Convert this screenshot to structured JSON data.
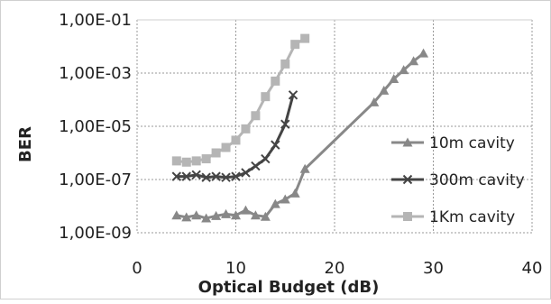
{
  "chart_data": {
    "type": "line",
    "title": "",
    "xlabel": "Optical Budget (dB)",
    "ylabel": "BER",
    "xlim": [
      0,
      40
    ],
    "x_ticks": [
      "0",
      "10",
      "20",
      "30",
      "40"
    ],
    "y_scale": "log",
    "ylim": [
      1e-09,
      0.1
    ],
    "y_ticks": [
      {
        "value": 0.1,
        "label": "1,00E-01"
      },
      {
        "value": 0.001,
        "label": "1,00E-03"
      },
      {
        "value": 1e-05,
        "label": "1,00E-05"
      },
      {
        "value": 1e-07,
        "label": "1,00E-07"
      },
      {
        "value": 1e-09,
        "label": "1,00E-09"
      }
    ],
    "grid": "both-dashed",
    "legend_position": "right",
    "series": [
      {
        "name": "10m cavity",
        "marker": "triangle",
        "color": "#888888",
        "x": [
          4,
          5,
          6,
          7,
          8,
          9,
          10,
          11,
          12,
          13,
          14,
          15,
          16,
          17,
          24,
          25,
          26,
          27,
          28,
          29
        ],
        "y": [
          4.5e-09,
          3.8e-09,
          4.5e-09,
          3.5e-09,
          4.3e-09,
          5e-09,
          4.5e-09,
          7e-09,
          4.5e-09,
          4e-09,
          1.2e-08,
          1.8e-08,
          3e-08,
          2.5e-07,
          8e-05,
          0.00022,
          0.0006,
          0.0013,
          0.0028,
          0.0055
        ]
      },
      {
        "name": "300m cavity",
        "marker": "x",
        "color": "#444444",
        "x": [
          4,
          5,
          6,
          7,
          8,
          9,
          10,
          11,
          12,
          13,
          14,
          15,
          15.8
        ],
        "y": [
          1.3e-07,
          1.3e-07,
          1.5e-07,
          1.2e-07,
          1.3e-07,
          1.2e-07,
          1.3e-07,
          1.8e-07,
          3.2e-07,
          6e-07,
          2e-06,
          1.2e-05,
          0.00015
        ]
      },
      {
        "name": "1Km cavity",
        "marker": "square",
        "color": "#b5b5b5",
        "x": [
          4,
          5,
          6,
          7,
          8,
          9,
          10,
          11,
          12,
          13,
          14,
          15,
          16,
          17
        ],
        "y": [
          5e-07,
          4.5e-07,
          5e-07,
          6e-07,
          1e-06,
          1.6e-06,
          3e-06,
          8e-06,
          2.5e-05,
          0.00013,
          0.0005,
          0.0022,
          0.012,
          0.02
        ]
      }
    ]
  }
}
